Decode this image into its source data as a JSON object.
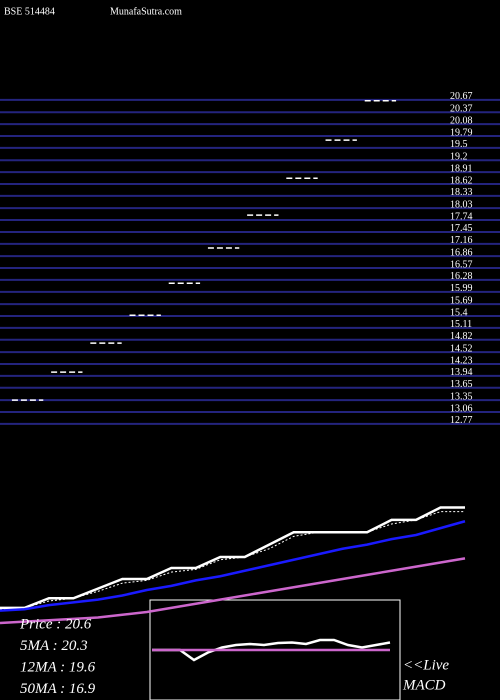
{
  "header": {
    "symbol": "BSE 514484",
    "site": "MunafaSutra.com"
  },
  "chart_data": [
    {
      "type": "scatter",
      "color": "#ffffff",
      "grid_color": "#24247e",
      "categories": [
        null,
        null,
        null,
        null,
        null,
        null,
        null,
        null,
        null,
        null
      ],
      "values": [
        13.35,
        14.03,
        14.74,
        15.42,
        16.2,
        17.06,
        17.86,
        18.76,
        19.69,
        20.65
      ],
      "ylim": [
        12.62,
        20.79
      ],
      "yticks": [
        20.67,
        20.37,
        20.08,
        19.79,
        19.5,
        19.2,
        18.91,
        18.62,
        18.33,
        18.03,
        17.74,
        17.45,
        17.16,
        16.86,
        16.57,
        16.28,
        15.99,
        15.69,
        15.4,
        15.11,
        14.82,
        14.52,
        14.23,
        13.94,
        13.65,
        13.35,
        13.06,
        12.77
      ],
      "grid": true
    },
    {
      "type": "line",
      "ylim": [
        6.6,
        22.6
      ],
      "series": [
        {
          "name": "Price",
          "color": "#ffffff",
          "values": [
            13.3,
            13.3,
            14.0,
            14.0,
            14.7,
            15.4,
            15.4,
            16.2,
            16.2,
            17.0,
            17.0,
            17.9,
            18.8,
            18.8,
            18.8,
            18.8,
            19.7,
            19.7,
            20.6,
            20.6
          ]
        },
        {
          "name": "5MA",
          "color": "#ffffff",
          "values": [
            13.2,
            13.3,
            13.8,
            14.0,
            14.5,
            15.1,
            15.3,
            15.9,
            16.1,
            16.8,
            17.0,
            17.6,
            18.5,
            18.8,
            18.8,
            18.8,
            19.4,
            19.7,
            20.3,
            20.3
          ]
        },
        {
          "name": "12MA",
          "color": "#1a1aff",
          "values": [
            13.1,
            13.2,
            13.5,
            13.7,
            13.9,
            14.2,
            14.6,
            14.9,
            15.3,
            15.6,
            16.0,
            16.4,
            16.8,
            17.2,
            17.6,
            17.9,
            18.3,
            18.6,
            19.1,
            19.6
          ]
        },
        {
          "name": "50MA",
          "color": "#cc66cc",
          "values": [
            12.2,
            12.3,
            12.4,
            12.5,
            12.6,
            12.8,
            13.0,
            13.3,
            13.6,
            13.9,
            14.2,
            14.5,
            14.8,
            15.1,
            15.4,
            15.7,
            16.0,
            16.3,
            16.6,
            16.9
          ]
        }
      ],
      "legend": [
        "Price   : 20.6",
        "5MA   : 20.3",
        "12MA  : 19.6",
        "50MA  : 16.9"
      ]
    },
    {
      "type": "line",
      "title": "<<Live",
      "subtitle": "MACD",
      "ylim": [
        -1,
        1
      ],
      "series": [
        {
          "color": "#ffffff",
          "values": [
            0,
            0,
            0,
            -0.2,
            -0.05,
            0.05,
            0.1,
            0.12,
            0.1,
            0.14,
            0.15,
            0.12,
            0.2,
            0.2,
            0.1,
            0.05,
            0.1,
            0.15
          ]
        },
        {
          "color": "#cc66cc",
          "values": [
            0,
            0,
            0,
            0,
            0,
            0,
            0,
            0,
            0,
            0,
            0,
            0,
            0,
            0,
            0,
            0,
            0,
            0
          ]
        }
      ]
    }
  ]
}
